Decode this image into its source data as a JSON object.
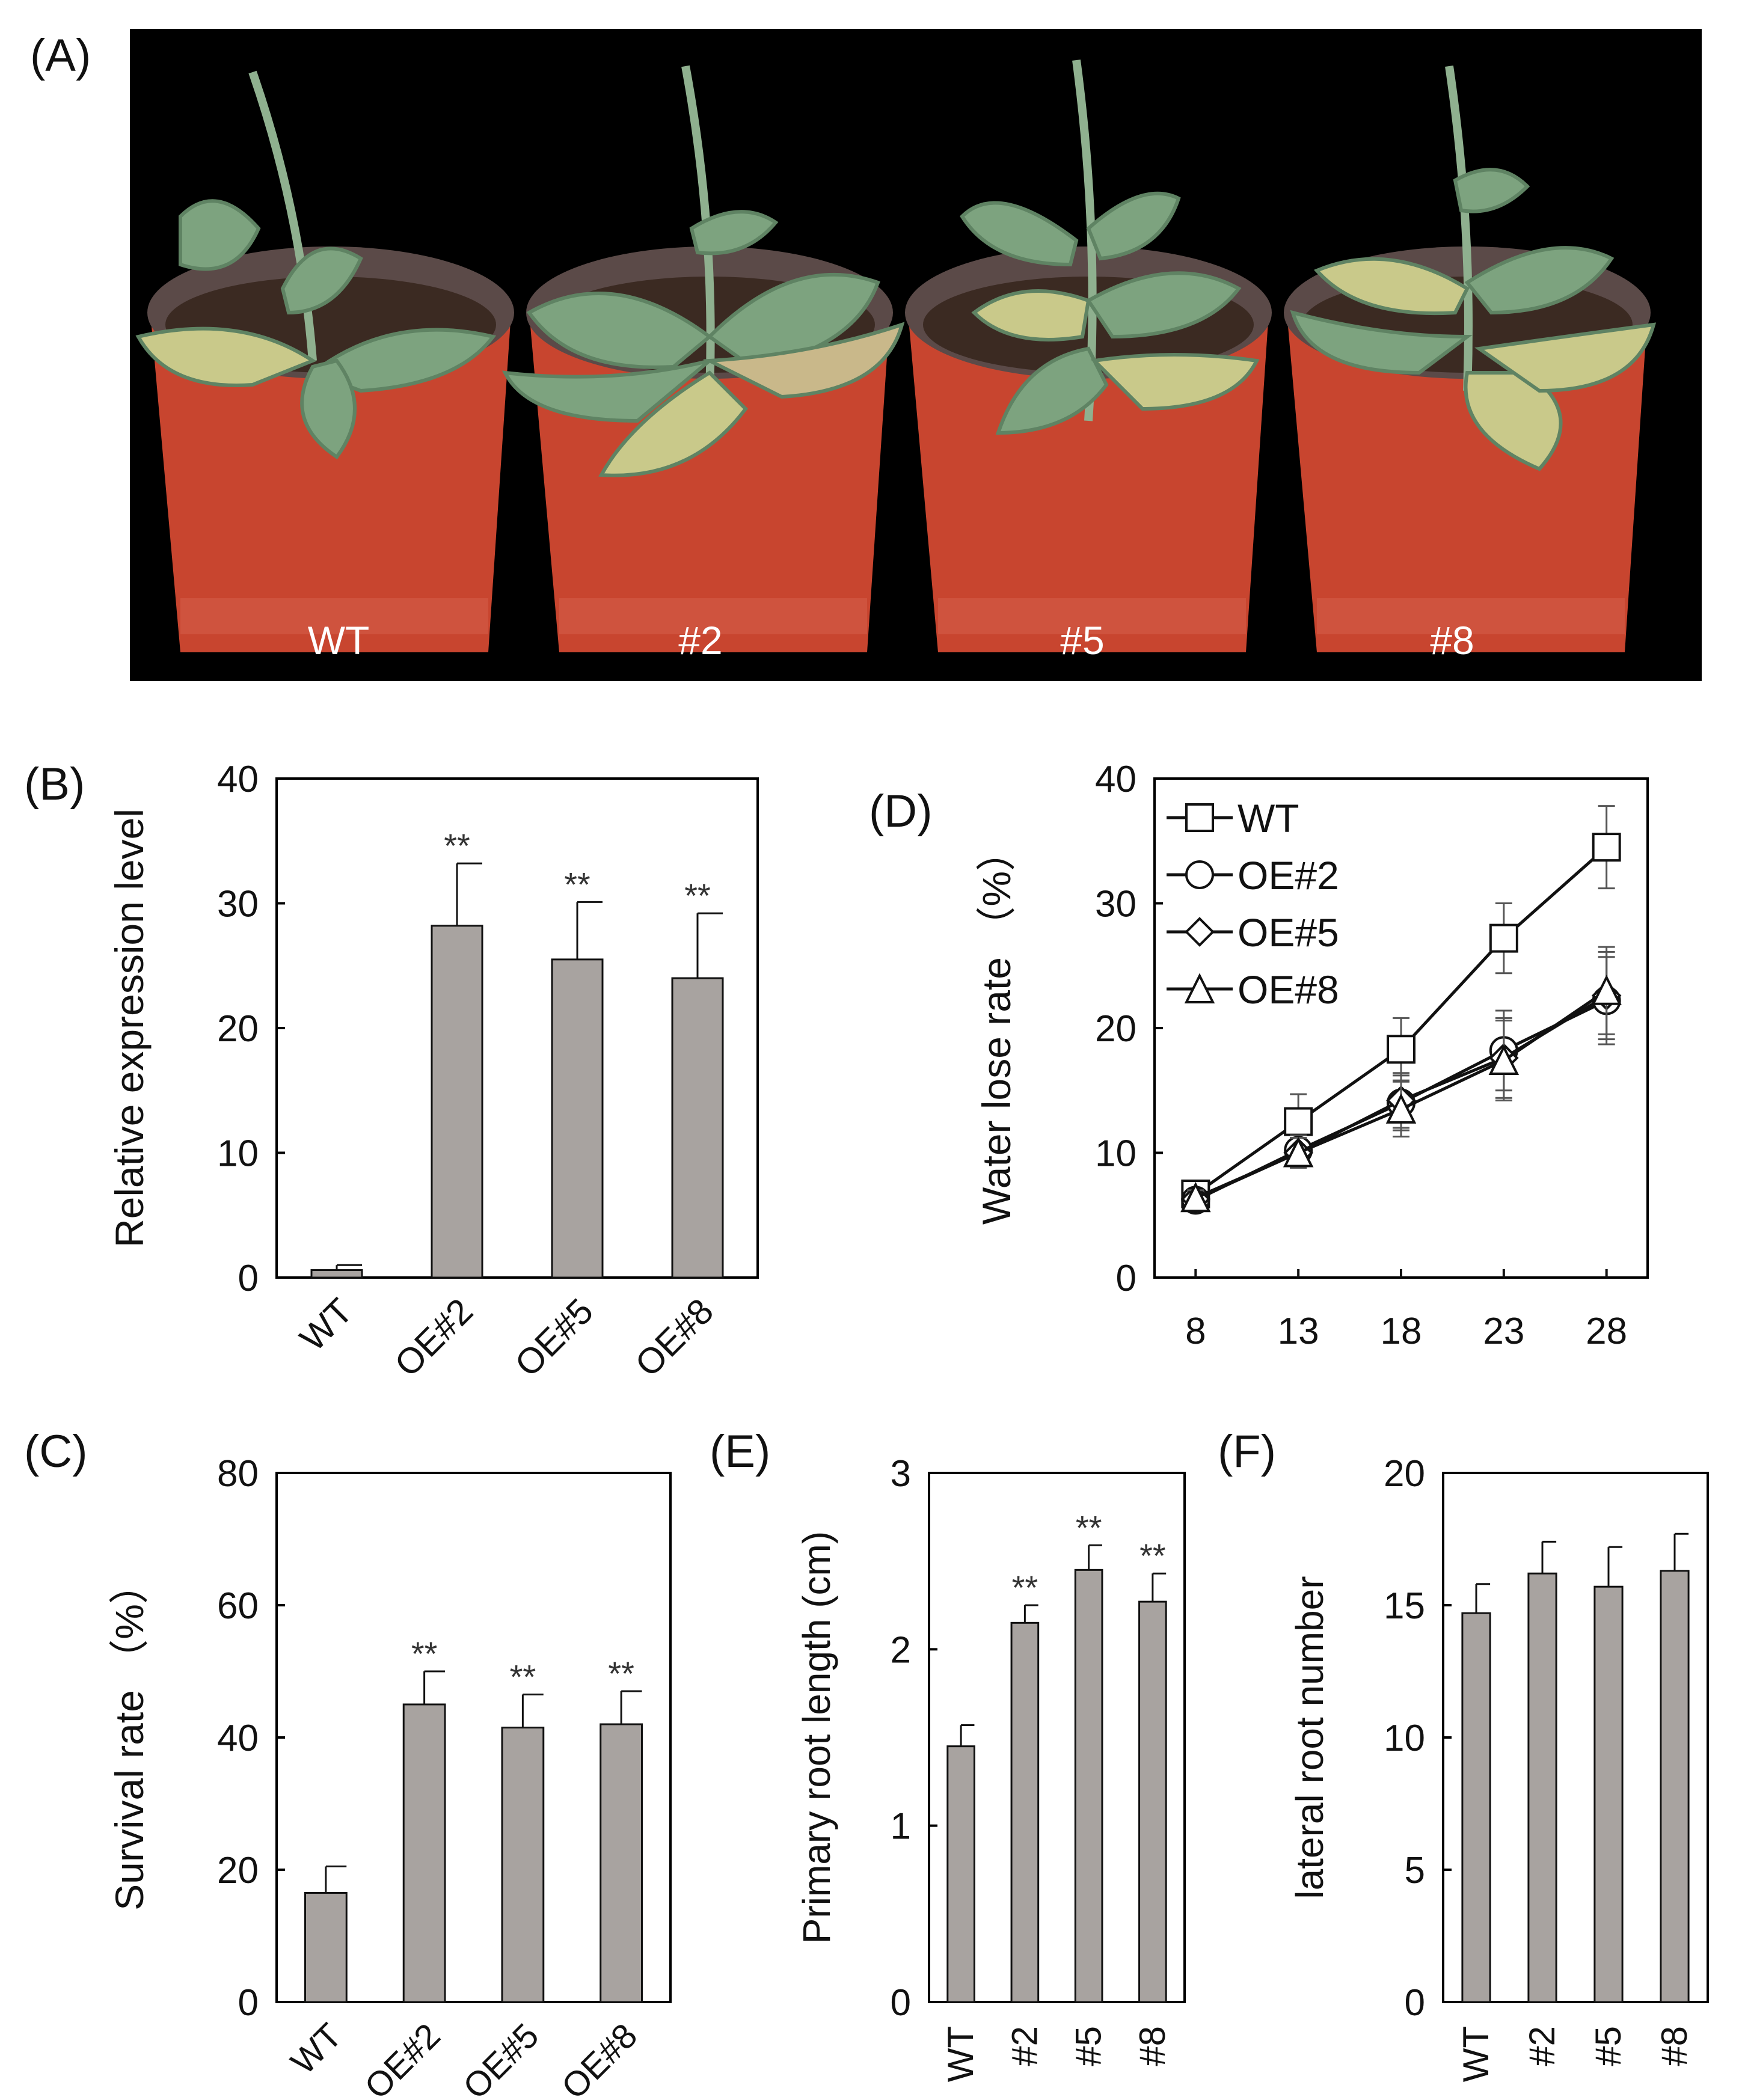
{
  "panels": {
    "A": {
      "label": "(A)",
      "pot_labels": [
        "WT",
        "#2",
        "#5",
        "#8"
      ]
    },
    "B": {
      "label": "(B)"
    },
    "C": {
      "label": "(C)"
    },
    "D": {
      "label": "(D)"
    },
    "E": {
      "label": "(E)"
    },
    "F": {
      "label": "(F)"
    }
  },
  "colors": {
    "bar": "#a8a3a0",
    "frame": "#000000",
    "photo_bg": "#000000",
    "pot": "#c8452f",
    "leaf": "#7da37f"
  },
  "chart_data": [
    {
      "id": "B",
      "type": "bar",
      "categories": [
        "WT",
        "OE#2",
        "OE#5",
        "OE#8"
      ],
      "values": [
        0.6,
        28.2,
        25.5,
        24.0
      ],
      "errors": [
        0.4,
        5.0,
        4.6,
        5.2
      ],
      "sig": [
        "",
        "**",
        "**",
        "**"
      ],
      "ylabel": "Relative expression level",
      "ylim": [
        0,
        40
      ],
      "yticks": [
        0,
        10,
        20,
        30,
        40
      ]
    },
    {
      "id": "C",
      "type": "bar",
      "categories": [
        "WT",
        "OE#2",
        "OE#5",
        "OE#8"
      ],
      "values": [
        16.5,
        45.0,
        41.5,
        42.0
      ],
      "errors": [
        4.0,
        5.0,
        5.0,
        5.0
      ],
      "sig": [
        "",
        "**",
        "**",
        "**"
      ],
      "ylabel": "Survival rate （%）",
      "ylim": [
        0,
        80
      ],
      "yticks": [
        0,
        20,
        40,
        60,
        80
      ]
    },
    {
      "id": "D",
      "type": "line",
      "x": [
        8,
        13,
        18,
        23,
        28
      ],
      "series": [
        {
          "name": "WT",
          "marker": "square",
          "values": [
            6.7,
            12.5,
            18.3,
            27.2,
            34.5
          ],
          "errors": [
            0.8,
            2.2,
            2.5,
            2.8,
            3.3
          ]
        },
        {
          "name": "OE#2",
          "marker": "circle",
          "values": [
            6.2,
            10.2,
            14.0,
            18.2,
            22.2
          ],
          "errors": [
            0.6,
            1.2,
            2.2,
            3.2,
            3.5
          ]
        },
        {
          "name": "OE#5",
          "marker": "diamond",
          "values": [
            6.3,
            10.0,
            14.2,
            17.6,
            22.6
          ],
          "errors": [
            0.6,
            1.2,
            2.2,
            3.2,
            3.5
          ]
        },
        {
          "name": "OE#8",
          "marker": "triangle",
          "values": [
            6.4,
            10.0,
            13.5,
            17.4,
            23.0
          ],
          "errors": [
            0.6,
            1.2,
            2.2,
            3.2,
            3.5
          ]
        }
      ],
      "ylabel": "Water lose rate （%）",
      "xlim": [
        6,
        30
      ],
      "xticks": [
        8,
        13,
        18,
        23,
        28
      ],
      "ylim": [
        0,
        40
      ],
      "yticks": [
        0,
        10,
        20,
        30,
        40
      ],
      "legend": "top-left"
    },
    {
      "id": "E",
      "type": "bar",
      "categories": [
        "WT",
        "#2",
        "#5",
        "#8"
      ],
      "values": [
        1.45,
        2.15,
        2.45,
        2.27
      ],
      "errors": [
        0.12,
        0.1,
        0.14,
        0.16
      ],
      "sig": [
        "",
        "**",
        "**",
        "**"
      ],
      "ylabel": "Primary root length (cm)",
      "ylim": [
        0,
        3
      ],
      "yticks": [
        0,
        1,
        2,
        3
      ]
    },
    {
      "id": "F",
      "type": "bar",
      "categories": [
        "WT",
        "#2",
        "#5",
        "#8"
      ],
      "values": [
        14.7,
        16.2,
        15.7,
        16.3
      ],
      "errors": [
        1.1,
        1.2,
        1.5,
        1.4
      ],
      "sig": [
        "",
        "",
        "",
        ""
      ],
      "ylabel": "lateral root number",
      "ylim": [
        0,
        20
      ],
      "yticks": [
        0,
        5,
        10,
        15,
        20
      ]
    }
  ]
}
